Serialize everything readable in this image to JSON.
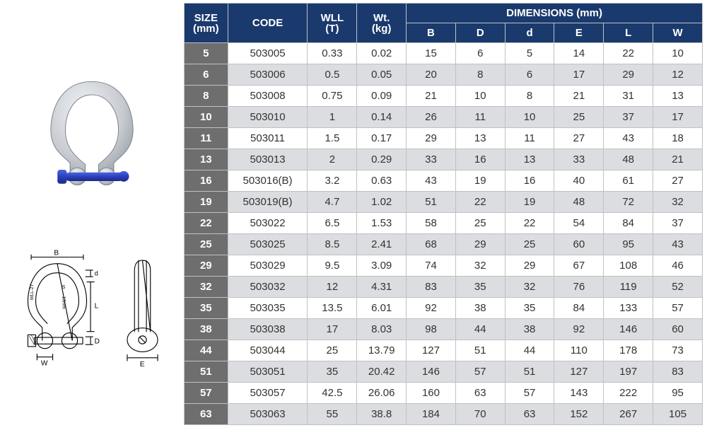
{
  "header": {
    "size": "SIZE",
    "size_unit": "(mm)",
    "code": "CODE",
    "wll": "WLL",
    "wll_unit": "(T)",
    "wt": "Wt.",
    "wt_unit": "(kg)",
    "dimensions": "DIMENSIONS (mm)",
    "dims": [
      "B",
      "D",
      "d",
      "E",
      "L",
      "W"
    ]
  },
  "styling": {
    "header_bg": "#1a3a6e",
    "header_fg": "#ffffff",
    "size_col_bg": "#6e6e6e",
    "size_col_fg": "#ffffff",
    "row_even_bg": "#ffffff",
    "row_odd_bg": "#dcdde0",
    "border_color": "#bfc1c3",
    "font_family": "Arial",
    "cell_fontsize": 15,
    "shackle_pin_color": "#2b3fbb",
    "shackle_body_color": "#c8ccd3",
    "diagram_stroke": "#000000"
  },
  "diagram_labels": {
    "B": "B",
    "d": "d",
    "L": "L",
    "D": "D",
    "W": "W",
    "E": "E",
    "S": "S",
    "inner": "13mm",
    "wll": "WLL-2T"
  },
  "rows": [
    {
      "size": "5",
      "code": "503005",
      "wll": "0.33",
      "wt": "0.02",
      "B": "15",
      "D": "6",
      "d": "5",
      "E": "14",
      "L": "22",
      "W": "10"
    },
    {
      "size": "6",
      "code": "503006",
      "wll": "0.5",
      "wt": "0.05",
      "B": "20",
      "D": "8",
      "d": "6",
      "E": "17",
      "L": "29",
      "W": "12"
    },
    {
      "size": "8",
      "code": "503008",
      "wll": "0.75",
      "wt": "0.09",
      "B": "21",
      "D": "10",
      "d": "8",
      "E": "21",
      "L": "31",
      "W": "13"
    },
    {
      "size": "10",
      "code": "503010",
      "wll": "1",
      "wt": "0.14",
      "B": "26",
      "D": "11",
      "d": "10",
      "E": "25",
      "L": "37",
      "W": "17"
    },
    {
      "size": "11",
      "code": "503011",
      "wll": "1.5",
      "wt": "0.17",
      "B": "29",
      "D": "13",
      "d": "11",
      "E": "27",
      "L": "43",
      "W": "18"
    },
    {
      "size": "13",
      "code": "503013",
      "wll": "2",
      "wt": "0.29",
      "B": "33",
      "D": "16",
      "d": "13",
      "E": "33",
      "L": "48",
      "W": "21"
    },
    {
      "size": "16",
      "code": "503016(B)",
      "wll": "3.2",
      "wt": "0.63",
      "B": "43",
      "D": "19",
      "d": "16",
      "E": "40",
      "L": "61",
      "W": "27"
    },
    {
      "size": "19",
      "code": "503019(B)",
      "wll": "4.7",
      "wt": "1.02",
      "B": "51",
      "D": "22",
      "d": "19",
      "E": "48",
      "L": "72",
      "W": "32"
    },
    {
      "size": "22",
      "code": "503022",
      "wll": "6.5",
      "wt": "1.53",
      "B": "58",
      "D": "25",
      "d": "22",
      "E": "54",
      "L": "84",
      "W": "37"
    },
    {
      "size": "25",
      "code": "503025",
      "wll": "8.5",
      "wt": "2.41",
      "B": "68",
      "D": "29",
      "d": "25",
      "E": "60",
      "L": "95",
      "W": "43"
    },
    {
      "size": "29",
      "code": "503029",
      "wll": "9.5",
      "wt": "3.09",
      "B": "74",
      "D": "32",
      "d": "29",
      "E": "67",
      "L": "108",
      "W": "46"
    },
    {
      "size": "32",
      "code": "503032",
      "wll": "12",
      "wt": "4.31",
      "B": "83",
      "D": "35",
      "d": "32",
      "E": "76",
      "L": "119",
      "W": "52"
    },
    {
      "size": "35",
      "code": "503035",
      "wll": "13.5",
      "wt": "6.01",
      "B": "92",
      "D": "38",
      "d": "35",
      "E": "84",
      "L": "133",
      "W": "57"
    },
    {
      "size": "38",
      "code": "503038",
      "wll": "17",
      "wt": "8.03",
      "B": "98",
      "D": "44",
      "d": "38",
      "E": "92",
      "L": "146",
      "W": "60"
    },
    {
      "size": "44",
      "code": "503044",
      "wll": "25",
      "wt": "13.79",
      "B": "127",
      "D": "51",
      "d": "44",
      "E": "110",
      "L": "178",
      "W": "73"
    },
    {
      "size": "51",
      "code": "503051",
      "wll": "35",
      "wt": "20.42",
      "B": "146",
      "D": "57",
      "d": "51",
      "E": "127",
      "L": "197",
      "W": "83"
    },
    {
      "size": "57",
      "code": "503057",
      "wll": "42.5",
      "wt": "26.06",
      "B": "160",
      "D": "63",
      "d": "57",
      "E": "143",
      "L": "222",
      "W": "95"
    },
    {
      "size": "63",
      "code": "503063",
      "wll": "55",
      "wt": "38.8",
      "B": "184",
      "D": "70",
      "d": "63",
      "E": "152",
      "L": "267",
      "W": "105"
    }
  ]
}
